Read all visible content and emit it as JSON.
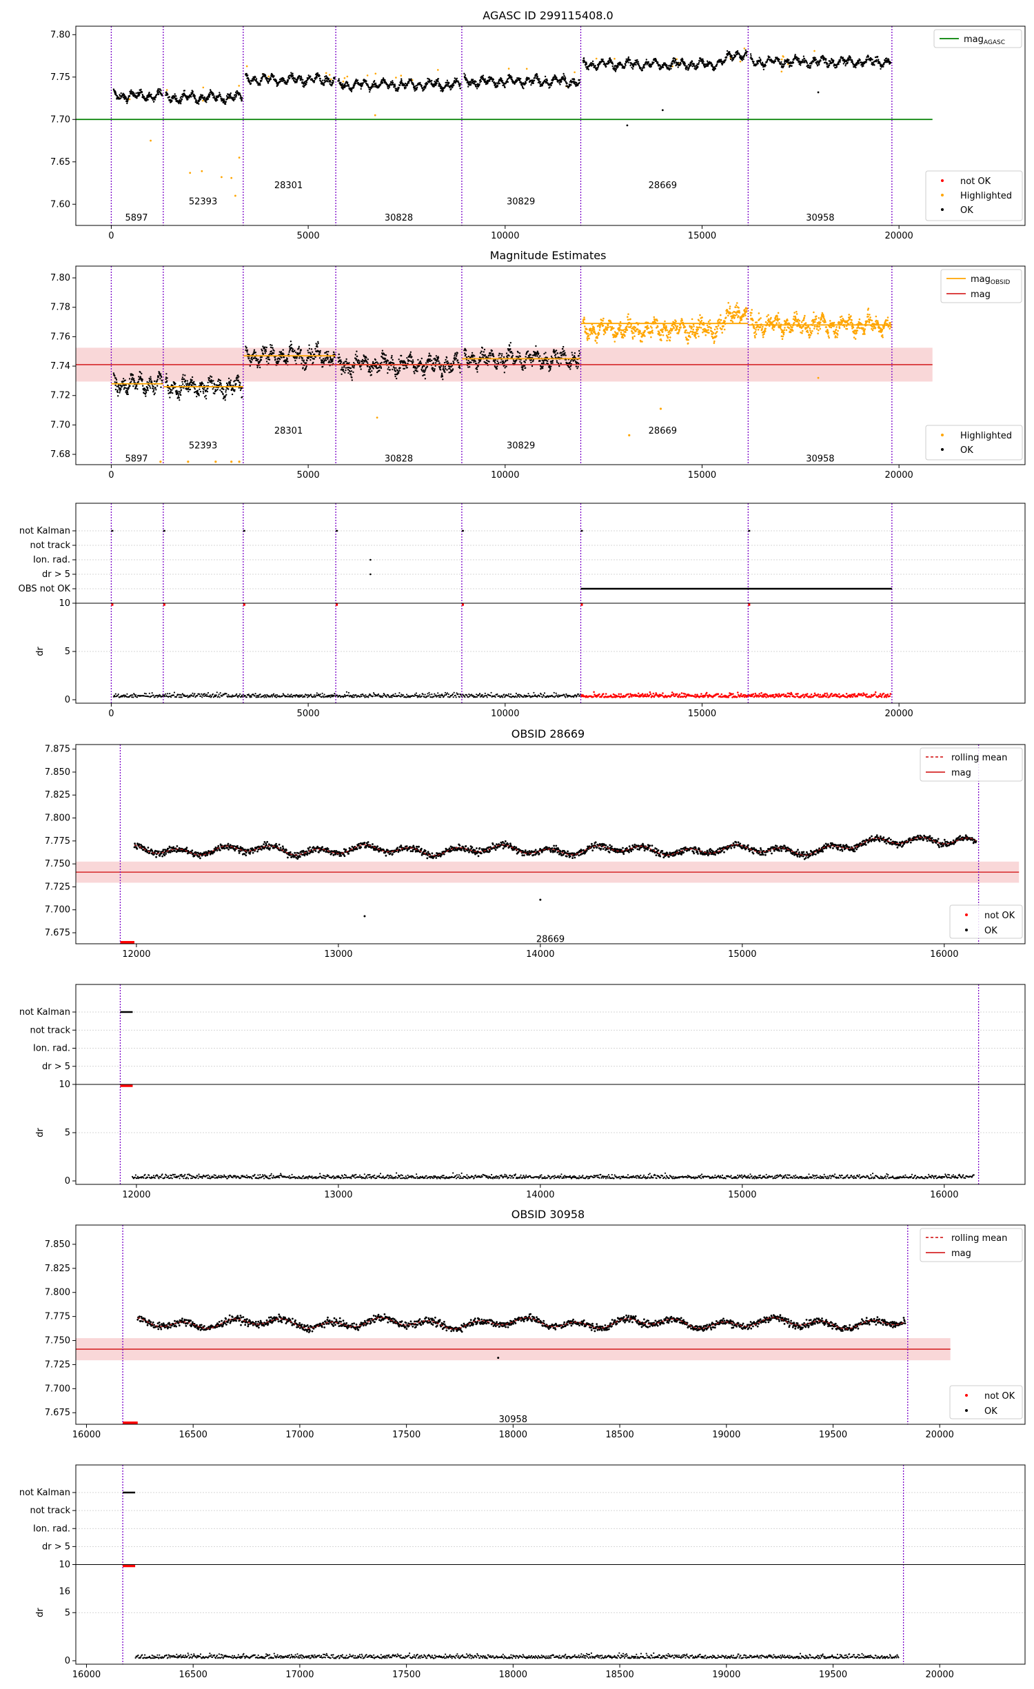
{
  "figure": {
    "title": "AGASC ID 299115408.0"
  },
  "chart_data": [
    {
      "type": "scatter",
      "title": "AGASC ID 299115408.0",
      "xlim": [
        -900,
        23200
      ],
      "ylim": [
        7.575,
        7.81
      ],
      "xticks": [
        0,
        5000,
        10000,
        15000,
        20000
      ],
      "xtick_labels": [
        "0",
        "5000",
        "10000",
        "15000",
        "20000"
      ],
      "yticks": [
        7.6,
        7.65,
        7.7,
        7.75,
        7.8
      ],
      "ytick_labels": [
        "7.60",
        "7.65",
        "7.70",
        "7.75",
        "7.80"
      ],
      "obs_boundaries": [
        0,
        1320,
        3350,
        5700,
        8900,
        11920,
        16170,
        19820
      ],
      "obs_labels": [
        {
          "label": "5897",
          "x": 640,
          "y": 7.584
        },
        {
          "label": "52393",
          "x": 2330,
          "y": 7.603
        },
        {
          "label": "28301",
          "x": 4500,
          "y": 7.622
        },
        {
          "label": "30828",
          "x": 7300,
          "y": 7.584
        },
        {
          "label": "30829",
          "x": 10400,
          "y": 7.603
        },
        {
          "label": "28669",
          "x": 14000,
          "y": 7.622
        },
        {
          "label": "30958",
          "x": 18000,
          "y": 7.584
        }
      ],
      "segments": [
        {
          "obsid": "5897",
          "x": [
            0,
            1320
          ],
          "mean": 7.728
        },
        {
          "obsid": "52393",
          "x": [
            1320,
            3350
          ],
          "mean": 7.726
        },
        {
          "obsid": "28301",
          "x": [
            3350,
            5700
          ],
          "mean": 7.747
        },
        {
          "obsid": "30828",
          "x": [
            5700,
            8900
          ],
          "mean": 7.741
        },
        {
          "obsid": "30829",
          "x": [
            8900,
            11920
          ],
          "mean": 7.745
        },
        {
          "obsid": "28669",
          "x": [
            11920,
            16170
          ],
          "mean": 7.769
        },
        {
          "obsid": "30958",
          "x": [
            16170,
            19820
          ],
          "mean": 7.768
        }
      ],
      "reference_lines": [
        {
          "name": "mag_AGASC",
          "y": 7.7,
          "xlim": [
            -900,
            20850
          ]
        }
      ],
      "outliers": [
        [
          1000,
          7.675
        ],
        [
          2000,
          7.637
        ],
        [
          2300,
          7.639
        ],
        [
          2800,
          7.632
        ],
        [
          3050,
          7.631
        ],
        [
          3150,
          7.61
        ],
        [
          3250,
          7.655
        ],
        [
          6700,
          7.705
        ],
        [
          13100,
          7.693
        ],
        [
          14000,
          7.711
        ],
        [
          17950,
          7.732
        ]
      ],
      "legends": [
        {
          "position": "top-right",
          "entries": [
            "mag_AGASC"
          ]
        },
        {
          "position": "lower-right",
          "entries": [
            "not OK",
            "Highlighted",
            "OK"
          ]
        }
      ]
    },
    {
      "type": "scatter",
      "title": "Magnitude Estimates",
      "xlim": [
        -900,
        23200
      ],
      "ylim": [
        7.673,
        7.808
      ],
      "xticks": [
        0,
        5000,
        10000,
        15000,
        20000
      ],
      "xtick_labels": [
        "0",
        "5000",
        "10000",
        "15000",
        "20000"
      ],
      "yticks": [
        7.68,
        7.7,
        7.72,
        7.74,
        7.76,
        7.78,
        7.8
      ],
      "ytick_labels": [
        "7.68",
        "7.70",
        "7.72",
        "7.74",
        "7.76",
        "7.78",
        "7.80"
      ],
      "obs_labels": [
        {
          "label": "5897",
          "x": 640,
          "y": 7.677
        },
        {
          "label": "52393",
          "x": 2330,
          "y": 7.686
        },
        {
          "label": "28301",
          "x": 4500,
          "y": 7.696
        },
        {
          "label": "30828",
          "x": 7300,
          "y": 7.677
        },
        {
          "label": "30829",
          "x": 10400,
          "y": 7.686
        },
        {
          "label": "28669",
          "x": 14000,
          "y": 7.696
        },
        {
          "label": "30958",
          "x": 18000,
          "y": 7.677
        }
      ],
      "mag": 7.741,
      "mag_band": [
        7.7295,
        7.7525
      ],
      "highlighted_from": 11920,
      "legends": [
        {
          "position": "top-right",
          "entries": [
            "mag_OBSID",
            "mag"
          ]
        },
        {
          "position": "lower-right",
          "entries": [
            "Highlighted",
            "OK"
          ]
        }
      ]
    },
    {
      "type": "scatter",
      "title": "",
      "categories": [
        "not Kalman",
        "not track",
        "Ion. rad.",
        "dr > 5",
        "OBS not OK"
      ],
      "xlim": [
        -900,
        23200
      ],
      "dr_ylabel": "dr",
      "dr_yticks": [
        "0",
        "5",
        "10"
      ],
      "xtick_labels": [
        "0",
        "5000",
        "10000",
        "15000",
        "20000"
      ],
      "obs_not_ok_range": [
        11920,
        19820
      ]
    },
    {
      "type": "scatter",
      "title": "OBSID 28669",
      "xlim": [
        11700,
        16400
      ],
      "ylim": [
        7.663,
        7.88
      ],
      "xticks": [
        12000,
        13000,
        14000,
        15000,
        16000
      ],
      "xtick_labels": [
        "12000",
        "13000",
        "14000",
        "15000",
        "16000"
      ],
      "yticks": [
        7.675,
        7.7,
        7.725,
        7.75,
        7.775,
        7.8,
        7.825,
        7.85,
        7.875
      ],
      "ytick_labels": [
        "7.675",
        "7.700",
        "7.725",
        "7.750",
        "7.775",
        "7.800",
        "7.825",
        "7.850",
        "7.875"
      ],
      "obs_range": [
        11920,
        16170
      ],
      "mag": 7.741,
      "mag_band": [
        7.7295,
        7.7525
      ],
      "obs_label": {
        "label": "28669",
        "x": 14050,
        "y": 7.668
      },
      "outliers": [
        [
          13130,
          7.693
        ],
        [
          14000,
          7.711
        ]
      ],
      "legends": [
        {
          "position": "top-right",
          "entries": [
            "rolling mean",
            "mag"
          ]
        },
        {
          "position": "lower-right",
          "entries": [
            "not OK",
            "OK"
          ]
        }
      ]
    },
    {
      "type": "scatter",
      "title": "",
      "categories": [
        "not Kalman",
        "not track",
        "Ion. rad.",
        "dr > 5"
      ],
      "xlim": [
        11700,
        16400
      ],
      "dr_ylabel": "dr",
      "dr_yticks": [
        "0",
        "5",
        "10"
      ],
      "xtick_labels": [
        "12000",
        "13000",
        "14000",
        "15000",
        "16000"
      ]
    },
    {
      "type": "scatter",
      "title": "OBSID 30958",
      "xlim": [
        15950,
        20400
      ],
      "ylim": [
        7.663,
        7.87
      ],
      "xticks": [
        16000,
        16500,
        17000,
        17500,
        18000,
        18500,
        19000,
        19500,
        20000
      ],
      "xtick_labels": [
        "16000",
        "16500",
        "17000",
        "17500",
        "18000",
        "18500",
        "19000",
        "19500",
        "20000"
      ],
      "yticks": [
        7.675,
        7.7,
        7.725,
        7.75,
        7.775,
        7.8,
        7.825,
        7.85
      ],
      "ytick_labels": [
        "7.675",
        "7.700",
        "7.725",
        "7.750",
        "7.775",
        "7.800",
        "7.825",
        "7.850"
      ],
      "obs_range": [
        16170,
        19850
      ],
      "mag": 7.741,
      "mag_band": [
        7.7295,
        7.7525
      ],
      "obs_label": {
        "label": "30958",
        "x": 18000,
        "y": 7.668
      },
      "outliers": [
        [
          17930,
          7.732
        ]
      ],
      "legends": [
        {
          "position": "top-right",
          "entries": [
            "rolling mean",
            "mag"
          ]
        },
        {
          "position": "lower-right",
          "entries": [
            "not OK",
            "OK"
          ]
        }
      ]
    },
    {
      "type": "scatter",
      "title": "",
      "categories": [
        "not Kalman",
        "not track",
        "Ion. rad.",
        "dr > 5"
      ],
      "xlim": [
        15950,
        20400
      ],
      "dr_ylabel": "dr",
      "dr_yticks": [
        "0",
        "5",
        "10"
      ],
      "extra_tick": "16",
      "xtick_labels": [
        "16000",
        "16500",
        "17000",
        "17500",
        "18000",
        "18500",
        "19000",
        "19500",
        "20000"
      ]
    }
  ],
  "colors": {
    "ok": "#000000",
    "highlighted": "#ffa500",
    "not_ok": "#ff0000",
    "boundary": "#7a00c8",
    "agasc": "#008000",
    "mag": "#d62728",
    "band": "#f7c6c7"
  }
}
